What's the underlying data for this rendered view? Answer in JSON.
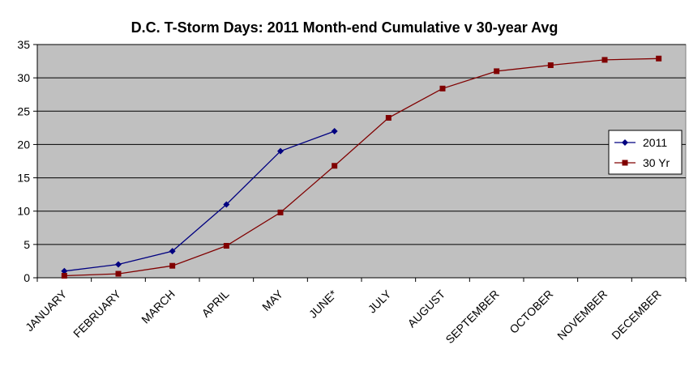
{
  "chart_data": {
    "type": "line",
    "title": "D.C. T-Storm Days: 2011 Month-end Cumulative v 30-year Avg",
    "xlabel": "",
    "ylabel": "",
    "categories": [
      "JANUARY",
      "FEBRUARY",
      "MARCH",
      "APRIL",
      "MAY",
      "JUNE*",
      "JULY",
      "AUGUST",
      "SEPTEMBER",
      "OCTOBER",
      "NOVEMBER",
      "DECEMBER"
    ],
    "ylim": [
      0,
      35
    ],
    "yticks": [
      "0",
      "5",
      "10",
      "15",
      "20",
      "25",
      "30",
      "35"
    ],
    "grid": true,
    "legend_position": "right",
    "series": [
      {
        "name": "2011",
        "color": "#000080",
        "marker": "diamond",
        "values": [
          1,
          2,
          4,
          11,
          19,
          22,
          null,
          null,
          null,
          null,
          null,
          null
        ]
      },
      {
        "name": "30 Yr",
        "color": "#800000",
        "marker": "square",
        "values": [
          0.3,
          0.6,
          1.8,
          4.8,
          9.8,
          16.8,
          24,
          28.4,
          31,
          31.9,
          32.7,
          32.9
        ]
      }
    ],
    "colors": {
      "plot_background": "#c0c0c0",
      "gridline": "#000000"
    }
  }
}
